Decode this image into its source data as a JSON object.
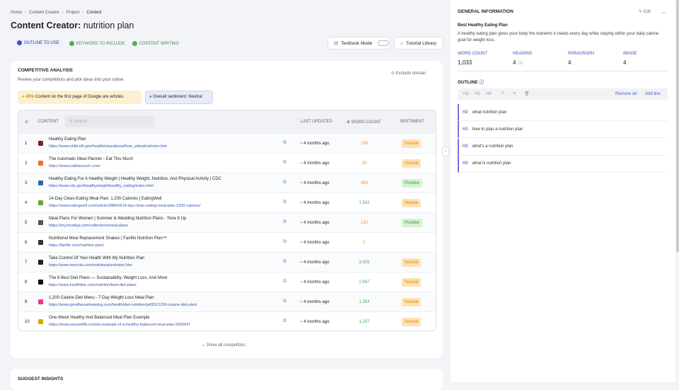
{
  "breadcrumb": [
    "Home",
    "Content Creator",
    "Project",
    "Content"
  ],
  "title_prefix": "Content Creator:",
  "title_main": "nutrition plan",
  "tabs": [
    "OUTLINE TO USE",
    "KEYWORD TO INCLUDE",
    "CONTENT WRITING"
  ],
  "textbook_mode": "Textbook Mode",
  "tutorial_library": "Tutorial Library",
  "competitive": {
    "title": "COMPETITIVE ANALYSIS",
    "subtitle": "Review your competitiors and pick ideas into your ouline",
    "exclude": "Exclude domain",
    "notice_pct": "45%",
    "notice_text": "Content on the first page of Google are articles.",
    "sentiment_label": "Overall sentiment:",
    "sentiment_value": "Neutral",
    "columns": [
      "CONTENT",
      "LAST UPDATED",
      "WORD COUNT",
      "SENTIMENT"
    ],
    "search": "Search",
    "rows": [
      {
        "rank": "1",
        "title": "Healthy Eating Plan",
        "url": "https://www.nhlbi.nih.gov/health/educational/lose_wt/eat/calories.htm",
        "updated": "~ 4 months ago",
        "words": "188",
        "color": "#f0953a",
        "sentiment": "Neutral"
      },
      {
        "rank": "2",
        "title": "The Automatic Meal Planner - Eat This Much",
        "url": "https://www.eatthismuch.com/",
        "updated": "~ 4 months ago",
        "words": "39",
        "color": "#f0953a",
        "sentiment": "Neutral"
      },
      {
        "rank": "3",
        "title": "Healthy Eating For A Healthy Weight | Healthy Weight, Nutrition, And Physical Activity | CDC",
        "url": "https://www.cdc.gov/healthyweight/healthy_eating/index.html",
        "updated": "~ 4 months ago",
        "words": "493",
        "color": "#f0953a",
        "sentiment": "Positive"
      },
      {
        "rank": "4",
        "title": "14-Day Clean-Eating Meal Plan: 1,200 Calories | EatingWell",
        "url": "https://www.eatingwell.com/article/288643/14-day-clean-eating-meal-plan-1200-calories/",
        "updated": "~ 4 months ago",
        "words": "1,583",
        "color": "#4cae4f",
        "sentiment": "Neutral"
      },
      {
        "rank": "5",
        "title": "Meal Plans For Women | Summer & Wedding Nutrition Plans - Tone It Up",
        "url": "https://my.toneitup.com/collections/meal-plans",
        "updated": "~ 4 months ago",
        "words": "130",
        "color": "#f0953a",
        "sentiment": "Positive"
      },
      {
        "rank": "6",
        "title": "Nutritional Meal Replacement Shakes | Fairlife Nutrition Plan™",
        "url": "https://fairlife.com/nutrition-plan/",
        "updated": "~ 4 months ago",
        "words": "0",
        "color": "#f0953a",
        "sentiment": null
      },
      {
        "rank": "7",
        "title": "Take Control Of Your Health With My Nutrition Plan",
        "url": "https://www.mercola.com/nutritionplan/index.htm",
        "updated": "~ 4 months ago",
        "words": "3,925",
        "color": "#4cae4f",
        "sentiment": "Neutral"
      },
      {
        "rank": "8",
        "title": "The 8 Best Diet Plans — Sustainability, Weight Loss, And More",
        "url": "https://www.healthline.com/nutrition/best-diet-plans",
        "updated": "~ 4 months ago",
        "words": "2,667",
        "color": "#4cae4f",
        "sentiment": "Neutral"
      },
      {
        "rank": "9",
        "title": "1,200 Calorie Diet Menu - 7 Day Weight Loss Meal Plan",
        "url": "https://www.goodhousekeeping.com/health/diet-nutrition/g4351/1200-calorie-diet-plan/",
        "updated": "~ 4 months ago",
        "words": "1,304",
        "color": "#4cae4f",
        "sentiment": "Neutral"
      },
      {
        "rank": "10",
        "title": "One-Week Healthy And Balanced Meal Plan Example",
        "url": "https://www.verywellfit.com/an-example-of-a-healthy-balanced-meal-plan-2506647",
        "updated": "~ 4 months ago",
        "words": "1,207",
        "color": "#4cae4f",
        "sentiment": "Neutral"
      }
    ],
    "show_all": "Show all competitors"
  },
  "suggest": "SUGGEST INSIGHTS",
  "general": {
    "title": "GENERAL INFORMATION",
    "edit": "Edit",
    "heading": "Best Healthy Eating Plan",
    "description": "A healthy eating plan gives your body the nutrients it needs every day while staying within your daily calorie goal for weight loss.",
    "stats": [
      {
        "label": "WORD COUNT",
        "value": "1,033"
      },
      {
        "label": "HEADING",
        "value": "4",
        "extra": "(4)"
      },
      {
        "label": "PARAGRAPH",
        "value": "4"
      },
      {
        "label": "IMAGE",
        "value": "4"
      }
    ]
  },
  "outline": {
    "title": "OUTLINE",
    "toolbar": [
      "H2",
      "H3",
      "H4"
    ],
    "remove_all": "Remove all",
    "add_line": "Add line",
    "items": [
      {
        "tag": "H2",
        "text": "what nutrition plan"
      },
      {
        "tag": "H2",
        "text": "how to plan a nutrition plan"
      },
      {
        "tag": "H2",
        "text": "what's a nutrition plan"
      },
      {
        "tag": "H2",
        "text": "what is nutrition plan"
      }
    ]
  }
}
